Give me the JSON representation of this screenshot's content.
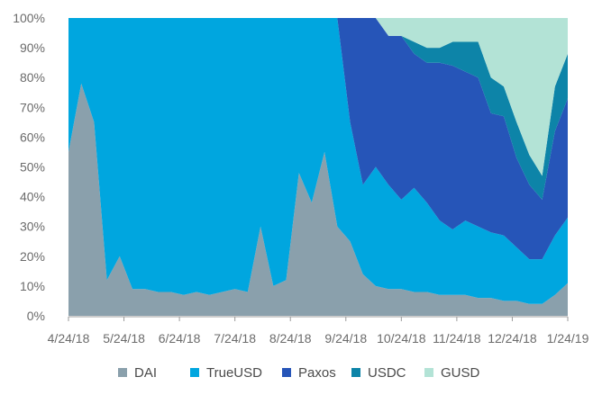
{
  "chart_data": {
    "type": "area",
    "stacked": true,
    "normalized": true,
    "title": "",
    "xlabel": "",
    "ylabel": "",
    "ylim": [
      0,
      100
    ],
    "grid": false,
    "legend_position": "bottom",
    "y_tick_labels": [
      "0%",
      "10%",
      "20%",
      "30%",
      "40%",
      "50%",
      "60%",
      "70%",
      "80%",
      "90%",
      "100%"
    ],
    "x_tick_labels": [
      "4/24/18",
      "5/24/18",
      "6/24/18",
      "7/24/18",
      "8/24/18",
      "9/24/18",
      "10/24/18",
      "11/24/18",
      "12/24/18",
      "1/24/19"
    ],
    "x": [
      "4/24/18",
      "5/1/18",
      "5/8/18",
      "5/15/18",
      "5/22/18",
      "5/29/18",
      "6/5/18",
      "6/12/18",
      "6/19/18",
      "6/26/18",
      "7/3/18",
      "7/10/18",
      "7/17/18",
      "7/24/18",
      "7/31/18",
      "8/7/18",
      "8/14/18",
      "8/21/18",
      "8/28/18",
      "9/4/18",
      "9/11/18",
      "9/18/18",
      "9/25/18",
      "10/2/18",
      "10/9/18",
      "10/16/18",
      "10/23/18",
      "10/30/18",
      "11/6/18",
      "11/13/18",
      "11/20/18",
      "11/27/18",
      "12/4/18",
      "12/11/18",
      "12/18/18",
      "12/25/18",
      "1/1/19",
      "1/8/19",
      "1/15/19",
      "1/24/19"
    ],
    "series": [
      {
        "name": "DAI",
        "color": "#8aa0ac",
        "values": [
          55,
          78,
          65,
          12,
          20,
          9,
          9,
          8,
          8,
          7,
          8,
          7,
          8,
          9,
          8,
          30,
          10,
          12,
          48,
          38,
          55,
          30,
          25,
          14,
          10,
          9,
          9,
          8,
          8,
          7,
          7,
          7,
          6,
          6,
          5,
          5,
          4,
          4,
          7,
          11
        ]
      },
      {
        "name": "TrueUSD",
        "color": "#00a6df",
        "values": [
          45,
          22,
          35,
          88,
          80,
          91,
          91,
          92,
          92,
          93,
          92,
          93,
          92,
          91,
          92,
          70,
          90,
          88,
          52,
          62,
          45,
          70,
          40,
          30,
          40,
          35,
          30,
          35,
          30,
          25,
          22,
          25,
          24,
          22,
          22,
          18,
          15,
          15,
          20,
          22
        ]
      },
      {
        "name": "Paxos",
        "color": "#2655b8",
        "values": [
          0,
          0,
          0,
          0,
          0,
          0,
          0,
          0,
          0,
          0,
          0,
          0,
          0,
          0,
          0,
          0,
          0,
          0,
          0,
          0,
          0,
          0,
          35,
          56,
          50,
          50,
          55,
          45,
          47,
          53,
          55,
          50,
          50,
          40,
          40,
          30,
          25,
          20,
          35,
          40
        ]
      },
      {
        "name": "USDC",
        "color": "#0d84a8",
        "values": [
          0,
          0,
          0,
          0,
          0,
          0,
          0,
          0,
          0,
          0,
          0,
          0,
          0,
          0,
          0,
          0,
          0,
          0,
          0,
          0,
          0,
          0,
          0,
          0,
          0,
          0,
          0,
          4,
          5,
          5,
          8,
          10,
          12,
          12,
          10,
          12,
          10,
          8,
          15,
          15
        ]
      },
      {
        "name": "GUSD",
        "color": "#b3e3d6",
        "values": [
          0,
          0,
          0,
          0,
          0,
          0,
          0,
          0,
          0,
          0,
          0,
          0,
          0,
          0,
          0,
          0,
          0,
          0,
          0,
          0,
          0,
          0,
          0,
          0,
          0,
          6,
          6,
          8,
          10,
          10,
          8,
          8,
          8,
          20,
          23,
          35,
          46,
          53,
          23,
          12
        ]
      }
    ]
  }
}
